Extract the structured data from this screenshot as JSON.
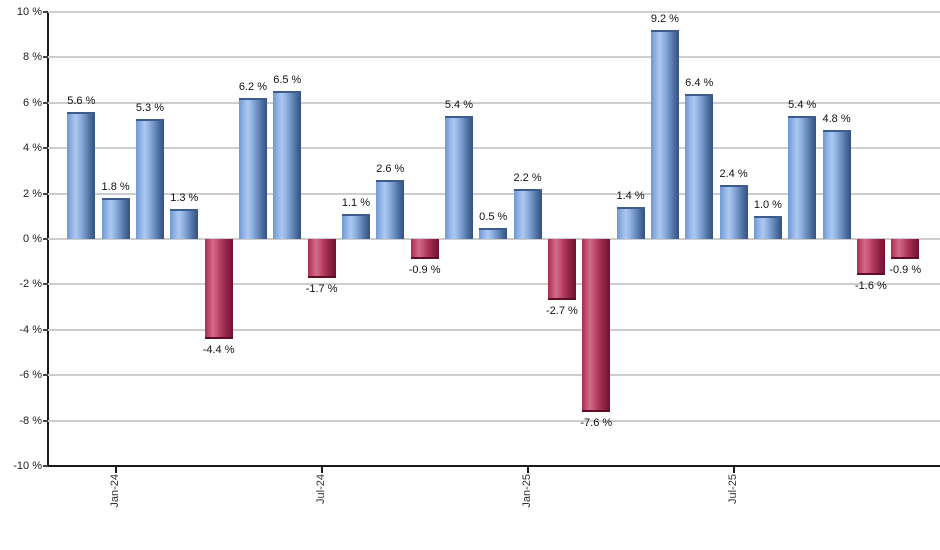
{
  "chart_data": {
    "type": "bar",
    "description": "Monthly percentage returns bar chart, blue bars positive, red bars negative",
    "values": [
      5.6,
      1.8,
      5.3,
      1.3,
      -4.4,
      6.2,
      6.5,
      -1.7,
      1.1,
      2.6,
      -0.9,
      5.4,
      0.5,
      2.2,
      -2.7,
      -7.6,
      1.4,
      9.2,
      6.4,
      2.4,
      1.0,
      5.4,
      4.8,
      -1.6,
      -0.9
    ],
    "bar_labels": [
      "5.6 %",
      "1.8 %",
      "5.3 %",
      "1.3 %",
      "-4.4 %",
      "6.2 %",
      "6.5 %",
      "-1.7 %",
      "1.1 %",
      "2.6 %",
      "-0.9 %",
      "5.4 %",
      "0.5 %",
      "2.2 %",
      "-2.7 %",
      "-7.6 %",
      "1.4 %",
      "9.2 %",
      "6.4 %",
      "2.4 %",
      "1.0 %",
      "5.4 %",
      "4.8 %",
      "-1.6 %",
      "-0.9 %"
    ],
    "x_ticks": [
      {
        "bar_index": 1,
        "label": "Jan-24"
      },
      {
        "bar_index": 7,
        "label": "Jul-24"
      },
      {
        "bar_index": 13,
        "label": "Jan-25"
      },
      {
        "bar_index": 19,
        "label": "Jul-25"
      }
    ],
    "y_ticks": [
      "10 %",
      "8 %",
      "6 %",
      "4 %",
      "2 %",
      "0 %",
      "-2 %",
      "-4 %",
      "-6 %",
      "-8 %",
      "-10 %"
    ],
    "ylim": [
      -10,
      10
    ],
    "y_step": 2,
    "grid": true,
    "legend_position": "none",
    "colors": {
      "positive": "#6d9ce0",
      "negative": "#c23b5e",
      "gridline": "#cdcdcd",
      "axis": "#1a1a1a",
      "label_text": "#111111"
    }
  }
}
